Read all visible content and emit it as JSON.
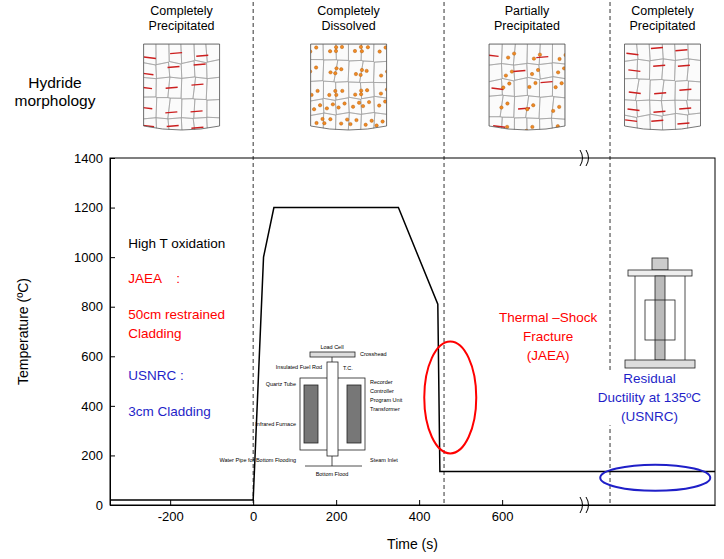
{
  "chart_data": {
    "type": "line",
    "x_label": "Time (s)",
    "y_label": "Temperature (ºC)",
    "xlim": [
      -345,
      1113
    ],
    "xticks": [
      -200,
      0,
      200,
      400,
      600
    ],
    "ylim": [
      0,
      1400
    ],
    "yticks": [
      0,
      200,
      400,
      600,
      800,
      1000,
      1200,
      1400
    ],
    "x": [
      -345,
      0,
      25,
      50,
      350,
      445,
      450,
      1113
    ],
    "values": [
      20,
      20,
      1000,
      1200,
      1200,
      810,
      135,
      135
    ],
    "color": "#000000",
    "morphology_label": "Hydride morphology",
    "phases": [
      {
        "label": [
          "Completely",
          "Precipitated"
        ],
        "start": -345,
        "end": 0,
        "marker": "lines"
      },
      {
        "label": [
          "Completely",
          "Dissolved"
        ],
        "start": 0,
        "end": 460,
        "marker": "dots"
      },
      {
        "label": [
          "Partially",
          "Precipitated"
        ],
        "start": 460,
        "end": 860,
        "marker": "mixed"
      },
      {
        "label": [
          "Completely",
          "Precipitated"
        ],
        "start": 860,
        "end": 1113,
        "marker": "lines"
      }
    ],
    "annotations": [
      {
        "lines": [
          "High T oxidation"
        ],
        "x": -301,
        "y": 1035,
        "color": "#000000"
      },
      {
        "lines": [
          "JAEA    :"
        ],
        "x": -301,
        "y": 897,
        "color": "#ff0000"
      },
      {
        "lines": [
          "50cm restrained",
          "Cladding"
        ],
        "x": -301,
        "y": 751,
        "color": "#ff0000"
      },
      {
        "lines": [
          "USNRC :"
        ],
        "x": -301,
        "y": 503,
        "color": "#1f1fc8"
      },
      {
        "lines": [
          "3cm Cladding"
        ],
        "x": -301,
        "y": 361,
        "color": "#1f1fc8"
      },
      {
        "lines": [
          "Thermal –Shock",
          "Fracture",
          "(JAEA)"
        ],
        "x": 711,
        "y": 739,
        "color": "#ff0000"
      },
      {
        "lines": [
          "Residual",
          "Ductility at 135ºC",
          "(USNRC)"
        ],
        "x": 955,
        "y": 491,
        "color": "#1f1fc8"
      }
    ],
    "highlights": [
      {
        "x": 475,
        "y": 434,
        "color": "#ff0000"
      },
      {
        "x": 969,
        "y": 110,
        "color": "#1f1fc8"
      }
    ],
    "inset_labels": [
      "Load Cell",
      "Crosshead",
      "Insulated Fuel Rod",
      "T.C.",
      "Quartz Tube",
      "Recorder",
      "Controller",
      "Program Unit",
      "Transformer",
      "Infrared Furnace",
      "Water Pipe for Bottom Flooding",
      "Steam Inlet",
      "Bottom Flood"
    ]
  }
}
